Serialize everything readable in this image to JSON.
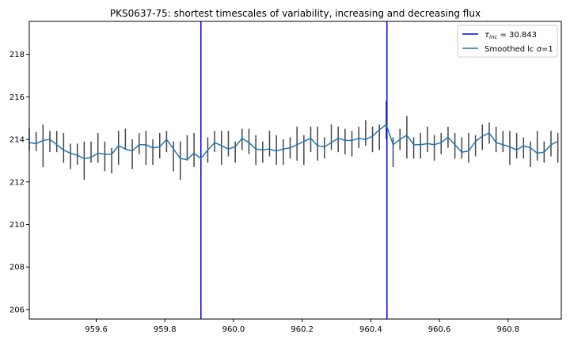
{
  "chart_data": {
    "type": "line",
    "title": "PKS0637-75: shortest timescales of variability, increasing and decreasing flux",
    "xlabel": "",
    "ylabel": "",
    "xlim": [
      959.405,
      960.955
    ],
    "ylim": [
      205.55,
      219.55
    ],
    "xticks": [
      959.6,
      959.8,
      960.0,
      960.2,
      960.4,
      960.6,
      960.8
    ],
    "xtick_labels": [
      "959.6",
      "959.8",
      "960.0",
      "960.2",
      "960.4",
      "960.6",
      "960.8"
    ],
    "yticks": [
      206,
      208,
      210,
      212,
      214,
      216,
      218
    ],
    "ytick_labels": [
      "206",
      "208",
      "210",
      "212",
      "214",
      "216",
      "218"
    ],
    "grid": false,
    "legend_position": "top-right",
    "legend": {
      "tau_prefix": "τ",
      "tau_sub": "inc",
      "tau_value": " = 30.843",
      "smooth_label": "Smoothed lc σ=1"
    },
    "vlines": [
      959.905,
      960.447
    ],
    "vline_color": "#0000ff",
    "smooth_color": "#1f77b4",
    "errorbar_color": "#444444",
    "errorbars": {
      "x": [
        959.405,
        959.425,
        959.445,
        959.465,
        959.485,
        959.505,
        959.525,
        959.545,
        959.565,
        959.585,
        959.605,
        959.625,
        959.645,
        959.665,
        959.685,
        959.705,
        959.725,
        959.745,
        959.765,
        959.785,
        959.805,
        959.825,
        959.845,
        959.865,
        959.885,
        959.905,
        959.925,
        959.945,
        959.965,
        959.985,
        960.005,
        960.025,
        960.045,
        960.065,
        960.085,
        960.105,
        960.125,
        960.145,
        960.165,
        960.185,
        960.205,
        960.225,
        960.245,
        960.265,
        960.285,
        960.305,
        960.325,
        960.345,
        960.365,
        960.385,
        960.405,
        960.425,
        960.445,
        960.465,
        960.485,
        960.505,
        960.525,
        960.545,
        960.565,
        960.585,
        960.605,
        960.625,
        960.645,
        960.665,
        960.685,
        960.705,
        960.725,
        960.745,
        960.765,
        960.785,
        960.805,
        960.825,
        960.845,
        960.865,
        960.885,
        960.905,
        960.925,
        960.945
      ],
      "y": [
        214.0,
        213.9,
        213.7,
        213.9,
        213.9,
        213.6,
        213.2,
        213.3,
        213.0,
        213.4,
        213.6,
        213.2,
        213.0,
        213.6,
        214.0,
        213.3,
        213.8,
        213.6,
        213.4,
        213.7,
        213.9,
        213.2,
        213.0,
        213.6,
        213.5,
        213.0,
        213.5,
        213.9,
        213.6,
        213.8,
        213.4,
        214.0,
        213.9,
        213.5,
        213.4,
        213.8,
        213.5,
        213.4,
        213.6,
        213.8,
        213.5,
        214.0,
        213.8,
        213.6,
        214.1,
        214.0,
        213.9,
        213.8,
        214.1,
        214.3,
        214.0,
        214.1,
        214.9,
        213.4,
        214.0,
        214.1,
        213.6,
        213.7,
        214.0,
        213.6,
        213.8,
        214.1,
        213.7,
        213.6,
        213.6,
        213.7,
        214.1,
        214.3,
        214.0,
        213.9,
        213.6,
        213.7,
        213.6,
        213.3,
        213.7,
        213.4,
        213.8,
        213.6
      ],
      "err": [
        0.55,
        0.45,
        1.0,
        0.5,
        0.5,
        0.7,
        0.6,
        0.5,
        0.9,
        0.5,
        0.7,
        0.7,
        0.6,
        0.8,
        0.5,
        0.7,
        0.5,
        0.8,
        0.6,
        0.6,
        0.5,
        0.7,
        0.9,
        0.6,
        0.8,
        0.7,
        0.6,
        0.5,
        0.8,
        0.6,
        0.5,
        0.5,
        0.6,
        0.7,
        0.5,
        0.6,
        0.7,
        0.6,
        0.5,
        0.8,
        0.7,
        0.6,
        0.8,
        0.5,
        0.6,
        0.6,
        0.6,
        0.6,
        0.5,
        0.6,
        0.6,
        0.6,
        0.9,
        0.7,
        0.5,
        1.0,
        0.5,
        0.6,
        0.6,
        0.6,
        0.5,
        0.5,
        0.6,
        0.5,
        0.7,
        0.5,
        0.6,
        0.5,
        0.6,
        0.5,
        0.8,
        0.6,
        0.5,
        0.6,
        0.7,
        0.5,
        0.6,
        0.7
      ]
    },
    "smoothed": {
      "x": [
        959.405,
        959.425,
        959.445,
        959.465,
        959.485,
        959.505,
        959.525,
        959.545,
        959.565,
        959.585,
        959.605,
        959.625,
        959.645,
        959.665,
        959.685,
        959.705,
        959.725,
        959.745,
        959.765,
        959.785,
        959.805,
        959.825,
        959.845,
        959.865,
        959.885,
        959.905,
        959.925,
        959.945,
        959.965,
        959.985,
        960.005,
        960.025,
        960.045,
        960.065,
        960.085,
        960.105,
        960.125,
        960.145,
        960.165,
        960.185,
        960.205,
        960.225,
        960.245,
        960.265,
        960.285,
        960.305,
        960.325,
        960.345,
        960.365,
        960.385,
        960.405,
        960.425,
        960.445,
        960.465,
        960.485,
        960.505,
        960.525,
        960.545,
        960.565,
        960.585,
        960.605,
        960.625,
        960.645,
        960.665,
        960.685,
        960.705,
        960.725,
        960.745,
        960.765,
        960.785,
        960.805,
        960.825,
        960.845,
        960.865,
        960.885,
        960.905,
        960.925,
        960.945
      ],
      "y": [
        213.85,
        213.8,
        213.95,
        214.0,
        213.75,
        213.5,
        213.35,
        213.25,
        213.1,
        213.15,
        213.35,
        213.3,
        213.3,
        213.7,
        213.55,
        213.45,
        213.75,
        213.75,
        213.6,
        213.65,
        214.0,
        213.55,
        213.1,
        213.05,
        213.35,
        213.1,
        213.5,
        213.85,
        213.7,
        213.55,
        213.65,
        214.05,
        213.85,
        213.55,
        213.5,
        213.55,
        213.45,
        213.55,
        213.6,
        213.75,
        213.9,
        214.05,
        213.7,
        213.65,
        213.85,
        214.05,
        213.95,
        213.95,
        214.05,
        214.0,
        214.15,
        214.45,
        214.7,
        213.75,
        214.0,
        214.2,
        213.75,
        213.75,
        213.8,
        213.75,
        213.85,
        214.1,
        213.75,
        213.4,
        213.45,
        213.9,
        214.15,
        214.3,
        213.85,
        213.75,
        213.65,
        213.5,
        213.7,
        213.6,
        213.35,
        213.4,
        213.75,
        213.9
      ]
    }
  }
}
